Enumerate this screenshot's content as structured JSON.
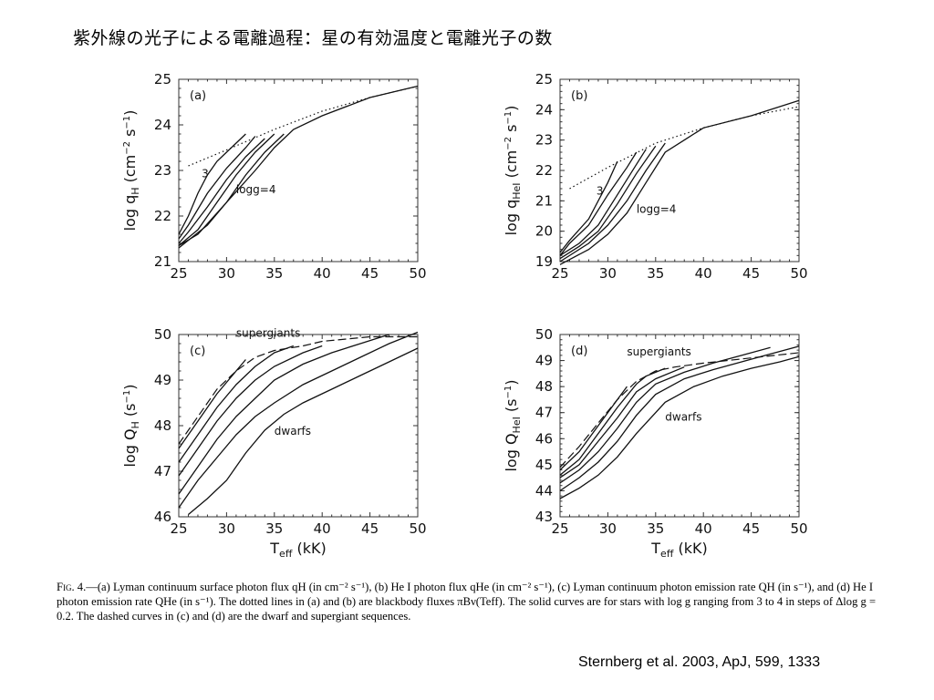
{
  "title": "紫外線の光子による電離過程：星の有効温度と電離光子の数",
  "caption": {
    "fig_label": "Fig. 4.",
    "text": "—(a) Lyman continuum surface photon flux qH (in cm⁻² s⁻¹), (b) He I photon flux qHe (in cm⁻² s⁻¹), (c) Lyman continuum photon emission rate QH (in s⁻¹), and (d) He I photon emission rate QHe (in s⁻¹). The dotted lines in (a) and (b) are blackbody fluxes πBν(Teff). The solid curves are for stars with log g ranging from 3 to 4 in steps of Δlog g = 0.2. The dashed curves in (c) and (d) are the dwarf and supergiant sequences."
  },
  "citation": "Sternberg et al. 2003, ApJ, 599, 1333",
  "chart_data": [
    {
      "id": "a",
      "type": "line",
      "panel_label": "(a)",
      "ylabel_main": "log q",
      "ylabel_sub": "H",
      "ylabel_unit": "(cm",
      "ylabel_unit_exp1": "−2",
      "ylabel_unit_mid": " s",
      "ylabel_unit_exp2": "−1",
      "ylabel_unit_end": ")",
      "xlabel_main": "",
      "xlabel_sub": "",
      "xlabel_unit": "",
      "xlim": [
        25,
        50
      ],
      "ylim": [
        21,
        25
      ],
      "xticks": [
        25,
        30,
        35,
        40,
        45,
        50
      ],
      "yticks": [
        21,
        22,
        23,
        24,
        25
      ],
      "annotations": [
        {
          "text": "3",
          "x": 27.4,
          "y": 22.85
        },
        {
          "text": "logg=4",
          "x": 31.0,
          "y": 22.5
        }
      ],
      "series": [
        {
          "style": "dotted",
          "x": [
            26,
            30,
            35,
            40,
            45,
            50
          ],
          "y": [
            23.1,
            23.45,
            23.9,
            24.3,
            24.6,
            24.85
          ]
        },
        {
          "style": "solid",
          "x": [
            25,
            26,
            27,
            28,
            29,
            30,
            32
          ],
          "y": [
            21.6,
            22.0,
            22.5,
            22.9,
            23.2,
            23.4,
            23.8
          ]
        },
        {
          "style": "solid",
          "x": [
            25,
            26,
            28,
            30,
            32,
            33
          ],
          "y": [
            21.5,
            21.8,
            22.5,
            23.05,
            23.5,
            23.75
          ]
        },
        {
          "style": "solid",
          "x": [
            25,
            26,
            28,
            30,
            32,
            34
          ],
          "y": [
            21.4,
            21.65,
            22.2,
            22.8,
            23.3,
            23.7
          ]
        },
        {
          "style": "solid",
          "x": [
            25,
            27,
            29,
            31,
            33,
            35
          ],
          "y": [
            21.35,
            21.7,
            22.3,
            22.9,
            23.4,
            23.8
          ]
        },
        {
          "style": "solid",
          "x": [
            25,
            27,
            30,
            32,
            34,
            36
          ],
          "y": [
            21.35,
            21.6,
            22.3,
            22.9,
            23.4,
            23.8
          ]
        },
        {
          "style": "solid",
          "x": [
            25,
            28,
            30,
            33,
            35,
            37,
            40,
            45,
            50
          ],
          "y": [
            21.3,
            21.8,
            22.3,
            23.0,
            23.5,
            23.9,
            24.2,
            24.6,
            24.85
          ]
        }
      ]
    },
    {
      "id": "b",
      "type": "line",
      "panel_label": "(b)",
      "ylabel_main": "log q",
      "ylabel_sub": "HeI",
      "ylabel_unit": "(cm",
      "ylabel_unit_exp1": "−2",
      "ylabel_unit_mid": " s",
      "ylabel_unit_exp2": "−1",
      "ylabel_unit_end": ")",
      "xlabel_main": "",
      "xlabel_sub": "",
      "xlabel_unit": "",
      "xlim": [
        25,
        50
      ],
      "ylim": [
        19,
        25
      ],
      "xticks": [
        25,
        30,
        35,
        40,
        45,
        50
      ],
      "yticks": [
        19,
        20,
        21,
        22,
        23,
        24,
        25
      ],
      "annotations": [
        {
          "text": "3",
          "x": 28.8,
          "y": 21.2
        },
        {
          "text": "logg=4",
          "x": 33.0,
          "y": 20.6
        }
      ],
      "series": [
        {
          "style": "dotted",
          "x": [
            26,
            30,
            35,
            40,
            45,
            50
          ],
          "y": [
            21.4,
            22.1,
            22.9,
            23.4,
            23.8,
            24.1
          ]
        },
        {
          "style": "solid",
          "x": [
            25,
            26,
            28,
            30,
            31
          ],
          "y": [
            19.3,
            19.7,
            20.4,
            21.6,
            22.3
          ]
        },
        {
          "style": "solid",
          "x": [
            25,
            26,
            28,
            30,
            32,
            33
          ],
          "y": [
            19.2,
            19.6,
            20.2,
            21.2,
            22.1,
            22.6
          ]
        },
        {
          "style": "solid",
          "x": [
            25,
            27,
            29,
            31,
            33,
            34
          ],
          "y": [
            19.2,
            19.6,
            20.2,
            21.2,
            22.2,
            22.7
          ]
        },
        {
          "style": "solid",
          "x": [
            25,
            27,
            29,
            31,
            33,
            35
          ],
          "y": [
            19.1,
            19.5,
            20.0,
            20.9,
            21.9,
            22.8
          ]
        },
        {
          "style": "solid",
          "x": [
            25,
            28,
            30,
            32,
            34,
            36
          ],
          "y": [
            19.0,
            19.6,
            20.2,
            21.0,
            22.0,
            22.9
          ]
        },
        {
          "style": "solid",
          "x": [
            25,
            28,
            30,
            32,
            34,
            36,
            38,
            40,
            45,
            50
          ],
          "y": [
            18.9,
            19.4,
            19.9,
            20.6,
            21.6,
            22.6,
            23.0,
            23.4,
            23.8,
            24.3
          ]
        }
      ]
    },
    {
      "id": "c",
      "type": "line",
      "panel_label": "(c)",
      "ylabel_main": "log Q",
      "ylabel_sub": "H",
      "ylabel_unit": "(s",
      "ylabel_unit_exp1": "",
      "ylabel_unit_mid": "",
      "ylabel_unit_exp2": "−1",
      "ylabel_unit_end": ")",
      "xlabel_main": "T",
      "xlabel_sub": "eff",
      "xlabel_unit": " (kK)",
      "xlim": [
        25,
        50
      ],
      "ylim": [
        46,
        50
      ],
      "xticks": [
        25,
        30,
        35,
        40,
        45,
        50
      ],
      "yticks": [
        46,
        47,
        48,
        49,
        50
      ],
      "annotations": [
        {
          "text": "supergiants",
          "x": 31.0,
          "y": 49.95
        },
        {
          "text": "dwarfs",
          "x": 35.0,
          "y": 47.8
        }
      ],
      "series": [
        {
          "style": "dashed",
          "x": [
            25,
            27,
            29,
            31,
            33,
            35,
            38,
            40,
            45,
            50
          ],
          "y": [
            47.6,
            48.2,
            48.8,
            49.2,
            49.5,
            49.65,
            49.75,
            49.85,
            49.95,
            49.95
          ]
        },
        {
          "style": "solid",
          "x": [
            25,
            27,
            29,
            31,
            32
          ],
          "y": [
            47.5,
            48.1,
            48.7,
            49.2,
            49.45
          ]
        },
        {
          "style": "solid",
          "x": [
            25,
            27,
            29,
            31,
            33,
            35,
            37
          ],
          "y": [
            47.2,
            47.8,
            48.4,
            48.9,
            49.3,
            49.6,
            49.75
          ]
        },
        {
          "style": "solid",
          "x": [
            25,
            27,
            29,
            31,
            33,
            35,
            38,
            40
          ],
          "y": [
            46.9,
            47.5,
            48.1,
            48.6,
            49.0,
            49.3,
            49.6,
            49.75
          ]
        },
        {
          "style": "solid",
          "x": [
            25,
            27,
            29,
            31,
            33,
            35,
            38,
            41,
            44,
            47
          ],
          "y": [
            46.5,
            47.1,
            47.7,
            48.2,
            48.6,
            49.0,
            49.35,
            49.6,
            49.8,
            50.0
          ]
        },
        {
          "style": "solid",
          "x": [
            25,
            27,
            29,
            31,
            33,
            35,
            38,
            41,
            44,
            47,
            50
          ],
          "y": [
            46.2,
            46.8,
            47.3,
            47.8,
            48.2,
            48.5,
            48.9,
            49.2,
            49.5,
            49.8,
            50.05
          ]
        },
        {
          "style": "solid",
          "x": [
            26,
            28,
            30,
            32,
            34,
            36,
            38,
            41,
            44,
            47,
            50
          ],
          "y": [
            46.05,
            46.4,
            46.8,
            47.4,
            47.9,
            48.25,
            48.5,
            48.8,
            49.1,
            49.4,
            49.7
          ]
        }
      ]
    },
    {
      "id": "d",
      "type": "line",
      "panel_label": "(d)",
      "ylabel_main": "log Q",
      "ylabel_sub": "HeI",
      "ylabel_unit": "(s",
      "ylabel_unit_exp1": "",
      "ylabel_unit_mid": "",
      "ylabel_unit_exp2": "−1",
      "ylabel_unit_end": ")",
      "xlabel_main": "T",
      "xlabel_sub": "eff",
      "xlabel_unit": " (kK)",
      "xlim": [
        25,
        50
      ],
      "ylim": [
        43,
        50
      ],
      "xticks": [
        25,
        30,
        35,
        40,
        45,
        50
      ],
      "yticks": [
        43,
        44,
        45,
        46,
        47,
        48,
        49,
        50
      ],
      "annotations": [
        {
          "text": "supergiants",
          "x": 32.0,
          "y": 49.2
        },
        {
          "text": "dwarfs",
          "x": 36.0,
          "y": 46.7
        }
      ],
      "series": [
        {
          "style": "dashed",
          "x": [
            25,
            27,
            29,
            31,
            33,
            35,
            37,
            40,
            45,
            50
          ],
          "y": [
            44.9,
            45.7,
            46.6,
            47.5,
            48.2,
            48.6,
            48.75,
            48.9,
            49.1,
            49.3
          ]
        },
        {
          "style": "solid",
          "x": [
            25,
            27,
            29,
            31,
            32
          ],
          "y": [
            44.8,
            45.5,
            46.5,
            47.5,
            48.0
          ]
        },
        {
          "style": "solid",
          "x": [
            25,
            27,
            29,
            31,
            33,
            34,
            36
          ],
          "y": [
            44.6,
            45.2,
            46.2,
            47.2,
            48.1,
            48.4,
            48.7
          ]
        },
        {
          "style": "solid",
          "x": [
            25,
            27,
            29,
            31,
            33,
            35,
            38
          ],
          "y": [
            44.5,
            45.0,
            45.9,
            46.8,
            47.8,
            48.3,
            48.75
          ]
        },
        {
          "style": "solid",
          "x": [
            25,
            27,
            29,
            31,
            33,
            35,
            38,
            41,
            44,
            47
          ],
          "y": [
            44.3,
            44.8,
            45.5,
            46.4,
            47.4,
            48.1,
            48.55,
            48.9,
            49.2,
            49.5
          ]
        },
        {
          "style": "solid",
          "x": [
            25,
            27,
            29,
            31,
            33,
            35,
            38,
            41,
            44,
            47,
            50
          ],
          "y": [
            44.0,
            44.5,
            45.1,
            45.9,
            46.9,
            47.7,
            48.3,
            48.65,
            48.95,
            49.25,
            49.55
          ]
        },
        {
          "style": "solid",
          "x": [
            25,
            27,
            29,
            31,
            33,
            36,
            39,
            42,
            45,
            48,
            50
          ],
          "y": [
            43.7,
            44.1,
            44.6,
            45.3,
            46.2,
            47.4,
            48.0,
            48.4,
            48.7,
            48.95,
            49.15
          ]
        }
      ]
    }
  ]
}
